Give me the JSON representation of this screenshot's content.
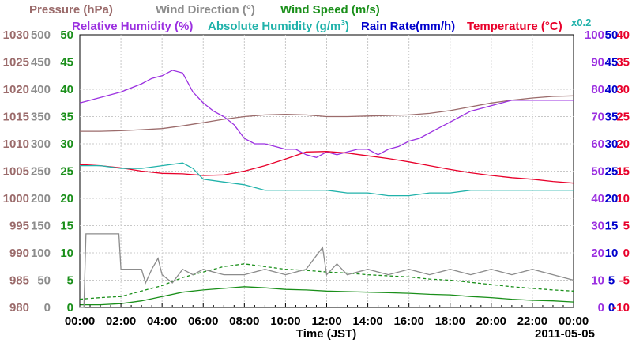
{
  "chart_data": {
    "type": "line",
    "date": "2011-05-05",
    "xlabel": "Time (JST)",
    "x_ticks": [
      "00:00",
      "02:00",
      "04:00",
      "06:00",
      "08:00",
      "10:00",
      "12:00",
      "14:00",
      "16:00",
      "18:00",
      "20:00",
      "22:00",
      "00:00"
    ],
    "x_range_hours": [
      0,
      24
    ],
    "grid": true,
    "legend": {
      "row1": [
        {
          "key": "pressure",
          "label": "Pressure (hPa)",
          "color": "#9b6b6b"
        },
        {
          "key": "wind_dir",
          "label": "Wind Direction (°)",
          "color": "#8c8c8c"
        },
        {
          "key": "wind_speed",
          "label": "Wind Speed (m/s)",
          "color": "#1a8f1a"
        }
      ],
      "row2": [
        {
          "key": "rh",
          "label": "Relative Humidity (%)",
          "color": "#9b30e0"
        },
        {
          "key": "ah",
          "label": "Absolute Humidity (g/m",
          "sup": "3",
          "tail": ")",
          "color": "#20b2aa"
        },
        {
          "key": "rain",
          "label": "Rain Rate(mm/h)",
          "color": "#0000cc"
        },
        {
          "key": "temp",
          "label": "Temperature (°C)",
          "color": "#e8002a"
        }
      ],
      "factor_label": "x0.2"
    },
    "axes": {
      "pressure": {
        "ticks": [
          "1030",
          "1025",
          "1020",
          "1015",
          "1010",
          "1005",
          "1000",
          "995",
          "990",
          "985",
          "980"
        ],
        "range": [
          980,
          1030
        ],
        "color": "#9b6b6b"
      },
      "wind_dir": {
        "ticks": [
          "500",
          "450",
          "400",
          "350",
          "300",
          "250",
          "200",
          "150",
          "100",
          "50",
          "0"
        ],
        "range": [
          0,
          500
        ],
        "color": "#8c8c8c"
      },
      "wind_speed": {
        "ticks": [
          "50",
          "45",
          "40",
          "35",
          "30",
          "25",
          "20",
          "15",
          "10",
          "5",
          "0"
        ],
        "range": [
          0,
          50
        ],
        "color": "#1a8f1a"
      },
      "rh": {
        "ticks": [
          "100",
          "90",
          "80",
          "70",
          "60",
          "50",
          "40",
          "30",
          "20",
          "10",
          "0"
        ],
        "range": [
          0,
          100
        ],
        "color": "#9b30e0"
      },
      "rain": {
        "ticks": [
          "50",
          "45",
          "40",
          "35",
          "30",
          "25",
          "20",
          "15",
          "10",
          "5",
          "0"
        ],
        "range": [
          0,
          50
        ],
        "color": "#0000cc"
      },
      "temp": {
        "ticks": [
          "40",
          "35",
          "30",
          "25",
          "20",
          "15",
          "10",
          "5",
          "0",
          "-5",
          "-10"
        ],
        "range": [
          -10,
          40
        ],
        "color": "#e8002a"
      }
    },
    "series": [
      {
        "key": "pressure",
        "axis": "pressure",
        "color": "#9b6b6b",
        "x": [
          0,
          1,
          2,
          3,
          4,
          5,
          6,
          7,
          8,
          9,
          10,
          11,
          12,
          13,
          14,
          15,
          16,
          17,
          18,
          19,
          20,
          21,
          22,
          23,
          24
        ],
        "y": [
          1012.3,
          1012.3,
          1012.4,
          1012.6,
          1012.8,
          1013.3,
          1013.9,
          1014.5,
          1015.0,
          1015.3,
          1015.4,
          1015.3,
          1015.0,
          1015.0,
          1015.1,
          1015.2,
          1015.3,
          1015.6,
          1016.1,
          1016.8,
          1017.5,
          1018.0,
          1018.4,
          1018.7,
          1018.8
        ]
      },
      {
        "key": "rh",
        "axis": "rh",
        "color": "#9b30e0",
        "x": [
          0,
          1,
          2,
          3,
          3.5,
          4,
          4.5,
          5,
          5.5,
          6,
          6.5,
          7,
          7.5,
          8,
          8.5,
          9,
          9.5,
          10,
          10.5,
          11,
          11.5,
          12,
          12.5,
          13,
          13.5,
          14,
          14.5,
          15,
          15.5,
          16,
          16.5,
          17,
          17.5,
          18,
          18.5,
          19,
          19.5,
          20,
          20.5,
          21,
          22,
          23,
          24
        ],
        "y": [
          75,
          77,
          79,
          82,
          84,
          85,
          87,
          86,
          79,
          75,
          72,
          70,
          67,
          62,
          60,
          60,
          59,
          58,
          58,
          56,
          55,
          57,
          56,
          57,
          58,
          58,
          56,
          58,
          59,
          61,
          62,
          64,
          66,
          68,
          70,
          72,
          73,
          74,
          75,
          76,
          76,
          76,
          76
        ]
      },
      {
        "key": "temp",
        "axis": "temp",
        "color": "#e8002a",
        "x": [
          0,
          1,
          2,
          3,
          4,
          5,
          6,
          7,
          8,
          9,
          10,
          11,
          12,
          13,
          14,
          15,
          16,
          17,
          18,
          19,
          20,
          21,
          22,
          23,
          24
        ],
        "y": [
          16.2,
          16.0,
          15.6,
          15.0,
          14.6,
          14.5,
          14.2,
          14.3,
          15.0,
          16.0,
          17.2,
          18.5,
          18.6,
          18.3,
          17.8,
          17.3,
          16.7,
          16.0,
          15.3,
          14.7,
          14.2,
          13.8,
          13.5,
          13.1,
          12.8
        ]
      },
      {
        "key": "ah",
        "axis": "rh",
        "factor": "x0.2",
        "color": "#20b2aa",
        "x": [
          0,
          1,
          2,
          3,
          4,
          5,
          5.5,
          6,
          7,
          8,
          9,
          10,
          11,
          12,
          13,
          14,
          15,
          16,
          17,
          18,
          19,
          20,
          21,
          22,
          23,
          24
        ],
        "y": [
          52,
          52,
          51,
          51,
          52,
          53,
          51,
          47,
          46,
          45,
          43,
          43,
          43,
          43,
          42,
          42,
          41,
          41,
          42,
          42,
          43,
          43,
          43,
          43,
          43,
          43
        ]
      },
      {
        "key": "wind_speed",
        "axis": "wind_speed",
        "color": "#1a8f1a",
        "x": [
          0,
          1,
          2,
          3,
          4,
          5,
          6,
          7,
          8,
          9,
          10,
          11,
          12,
          13,
          14,
          15,
          16,
          17,
          18,
          19,
          20,
          21,
          22,
          23,
          24
        ],
        "y": [
          0.5,
          0.5,
          0.7,
          1.2,
          2.0,
          2.8,
          3.2,
          3.5,
          3.8,
          3.6,
          3.3,
          3.2,
          3.0,
          2.9,
          2.8,
          2.7,
          2.6,
          2.4,
          2.3,
          2.0,
          1.8,
          1.5,
          1.3,
          1.2,
          1.0
        ]
      },
      {
        "key": "wind_speed_max",
        "axis": "wind_speed",
        "color": "#1a8f1a",
        "dashed": true,
        "x": [
          0,
          1,
          2,
          3,
          4,
          5,
          6,
          7,
          8,
          9,
          10,
          11,
          12,
          13,
          14,
          15,
          16,
          17,
          18,
          19,
          20,
          21,
          22,
          23,
          24
        ],
        "y": [
          1.5,
          1.8,
          2.0,
          3.0,
          4.0,
          5.5,
          6.5,
          7.5,
          8.0,
          7.5,
          7.0,
          6.8,
          6.5,
          6.3,
          6.0,
          5.8,
          5.6,
          5.2,
          5.0,
          4.6,
          4.2,
          3.8,
          3.5,
          3.2,
          3.0
        ]
      },
      {
        "key": "wind_dir",
        "axis": "wind_dir",
        "color": "#8c8c8c",
        "x": [
          0,
          0.2,
          0.3,
          1.9,
          2.0,
          3.0,
          3.2,
          3.5,
          3.8,
          4.0,
          4.5,
          5.0,
          5.5,
          6.0,
          7.0,
          8.0,
          9.0,
          10.0,
          11.0,
          11.8,
          12.0,
          12.5,
          13.0,
          14.0,
          15.0,
          16.0,
          17.0,
          18.0,
          19.0,
          20.0,
          21.0,
          22.0,
          23.0,
          24.0
        ],
        "y": [
          0,
          0,
          135,
          135,
          70,
          70,
          45,
          70,
          90,
          60,
          45,
          70,
          60,
          70,
          60,
          60,
          70,
          60,
          70,
          110,
          60,
          80,
          60,
          70,
          60,
          70,
          60,
          70,
          60,
          70,
          60,
          70,
          60,
          50
        ]
      }
    ]
  }
}
